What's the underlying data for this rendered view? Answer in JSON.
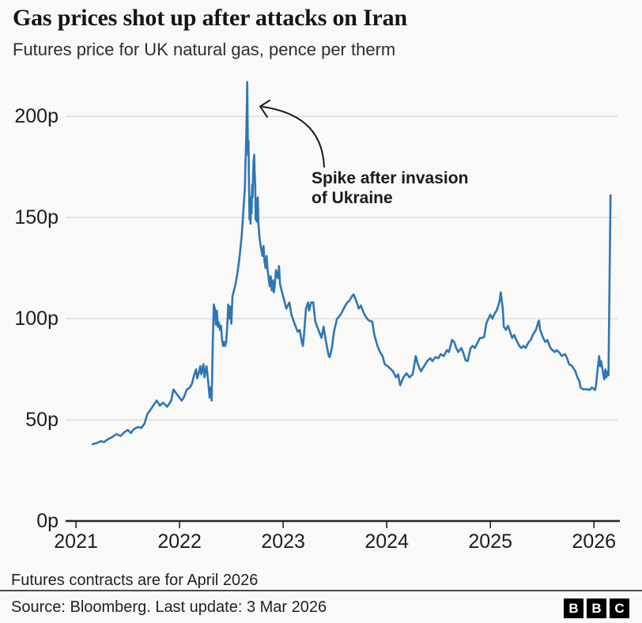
{
  "header": {
    "title": "Gas prices shot up after attacks on Iran",
    "subtitle": "Futures price for UK natural gas, pence per therm"
  },
  "annotation": {
    "lines": [
      "Spike after invasion",
      "of Ukraine"
    ],
    "points_to": {
      "x": 2022.65,
      "y": 217
    }
  },
  "footer": {
    "note": "Futures contracts are for April 2026",
    "source": "Source: Bloomberg. Last update: 3 Mar 2026",
    "logo": [
      "B",
      "B",
      "C"
    ]
  },
  "colors": {
    "line": "#2e76b4",
    "background": "#f9f9f8",
    "grid": "#d9d9d8",
    "axis": "#262626",
    "text": "#1d1d1d",
    "annotation_arrow": "#1a1a1a"
  },
  "chart_data": {
    "type": "line",
    "title": "Gas prices shot up after attacks on Iran",
    "subtitle": "Futures price for UK natural gas, pence per therm",
    "xlabel": "",
    "ylabel": "pence per therm",
    "x_unit": "decimal_year",
    "xlim": [
      2020.9,
      2026.25
    ],
    "ylim": [
      0,
      220
    ],
    "grid": "horizontal",
    "legend": "none",
    "xticks": [
      2021,
      2022,
      2023,
      2024,
      2025,
      2026
    ],
    "yticks": [
      {
        "value": 0,
        "label": "0p"
      },
      {
        "value": 50,
        "label": "50p"
      },
      {
        "value": 100,
        "label": "100p"
      },
      {
        "value": 150,
        "label": "150p"
      },
      {
        "value": 200,
        "label": "200p"
      }
    ],
    "annotations": [
      {
        "text": "Spike after invasion of Ukraine",
        "target": {
          "x": 2022.65,
          "y": 217
        }
      }
    ],
    "series": [
      {
        "name": "UK natural gas futures price (April 2026 contract), pence per therm",
        "points": [
          [
            2021.16,
            38
          ],
          [
            2021.2,
            38.5
          ],
          [
            2021.24,
            39.5
          ],
          [
            2021.27,
            39
          ],
          [
            2021.31,
            40.5
          ],
          [
            2021.35,
            41.5
          ],
          [
            2021.39,
            43
          ],
          [
            2021.43,
            42
          ],
          [
            2021.47,
            44
          ],
          [
            2021.5,
            45
          ],
          [
            2021.53,
            43.5
          ],
          [
            2021.56,
            45.5
          ],
          [
            2021.6,
            46.5
          ],
          [
            2021.63,
            46
          ],
          [
            2021.66,
            48
          ],
          [
            2021.69,
            53
          ],
          [
            2021.72,
            55
          ],
          [
            2021.75,
            57.5
          ],
          [
            2021.78,
            59.5
          ],
          [
            2021.81,
            57
          ],
          [
            2021.84,
            58.5
          ],
          [
            2021.88,
            56.5
          ],
          [
            2021.92,
            59.5
          ],
          [
            2021.94,
            65
          ],
          [
            2021.97,
            63
          ],
          [
            2022,
            61
          ],
          [
            2022.02,
            59.5
          ],
          [
            2022.04,
            61
          ],
          [
            2022.07,
            65
          ],
          [
            2022.1,
            66
          ],
          [
            2022.12,
            68
          ],
          [
            2022.14,
            72
          ],
          [
            2022.16,
            75
          ],
          [
            2022.17,
            70.5
          ],
          [
            2022.19,
            74
          ],
          [
            2022.2,
            76.5
          ],
          [
            2022.21,
            72.5
          ],
          [
            2022.23,
            77.5
          ],
          [
            2022.24,
            71
          ],
          [
            2022.26,
            76.5
          ],
          [
            2022.27,
            72
          ],
          [
            2022.28,
            67
          ],
          [
            2022.29,
            61
          ],
          [
            2022.3,
            66
          ],
          [
            2022.31,
            59.5
          ],
          [
            2022.32,
            88
          ],
          [
            2022.33,
            107
          ],
          [
            2022.34,
            105
          ],
          [
            2022.35,
            97
          ],
          [
            2022.36,
            104
          ],
          [
            2022.37,
            96
          ],
          [
            2022.38,
            98
          ],
          [
            2022.39,
            94.5
          ],
          [
            2022.4,
            96.5
          ],
          [
            2022.41,
            89.5
          ],
          [
            2022.42,
            86.5
          ],
          [
            2022.43,
            88.5
          ],
          [
            2022.44,
            86.5
          ],
          [
            2022.45,
            88.5
          ],
          [
            2022.46,
            96
          ],
          [
            2022.47,
            107
          ],
          [
            2022.48,
            100
          ],
          [
            2022.49,
            106
          ],
          [
            2022.5,
            97.5
          ],
          [
            2022.51,
            111
          ],
          [
            2022.52,
            113
          ],
          [
            2022.54,
            117
          ],
          [
            2022.56,
            123
          ],
          [
            2022.58,
            131
          ],
          [
            2022.6,
            141
          ],
          [
            2022.61,
            149
          ],
          [
            2022.62,
            157
          ],
          [
            2022.63,
            164
          ],
          [
            2022.635,
            175
          ],
          [
            2022.64,
            183
          ],
          [
            2022.645,
            192
          ],
          [
            2022.65,
            207
          ],
          [
            2022.653,
            217
          ],
          [
            2022.657,
            196
          ],
          [
            2022.66,
            181
          ],
          [
            2022.665,
            188
          ],
          [
            2022.67,
            168
          ],
          [
            2022.675,
            149
          ],
          [
            2022.68,
            157
          ],
          [
            2022.685,
            147
          ],
          [
            2022.69,
            160
          ],
          [
            2022.695,
            152
          ],
          [
            2022.7,
            166
          ],
          [
            2022.705,
            160
          ],
          [
            2022.71,
            172
          ],
          [
            2022.715,
            178
          ],
          [
            2022.72,
            181
          ],
          [
            2022.725,
            172
          ],
          [
            2022.73,
            166
          ],
          [
            2022.735,
            149
          ],
          [
            2022.74,
            159
          ],
          [
            2022.745,
            148
          ],
          [
            2022.75,
            158
          ],
          [
            2022.755,
            160
          ],
          [
            2022.76,
            148
          ],
          [
            2022.77,
            141
          ],
          [
            2022.78,
            137
          ],
          [
            2022.79,
            134
          ],
          [
            2022.8,
            131
          ],
          [
            2022.81,
            136
          ],
          [
            2022.82,
            128
          ],
          [
            2022.83,
            125
          ],
          [
            2022.84,
            131
          ],
          [
            2022.85,
            124
          ],
          [
            2022.86,
            120
          ],
          [
            2022.87,
            116
          ],
          [
            2022.88,
            121
          ],
          [
            2022.89,
            114
          ],
          [
            2022.9,
            119
          ],
          [
            2022.91,
            113
          ],
          [
            2022.92,
            117
          ],
          [
            2022.93,
            124
          ],
          [
            2022.95,
            120
          ],
          [
            2022.96,
            126
          ],
          [
            2022.97,
            117
          ],
          [
            2022.99,
            113
          ],
          [
            2023.01,
            109
          ],
          [
            2023.03,
            105
          ],
          [
            2023.06,
            108
          ],
          [
            2023.08,
            102
          ],
          [
            2023.11,
            97.5
          ],
          [
            2023.14,
            93.5
          ],
          [
            2023.16,
            94.5
          ],
          [
            2023.18,
            88.5
          ],
          [
            2023.19,
            86.5
          ],
          [
            2023.2,
            91.5
          ],
          [
            2023.22,
            105
          ],
          [
            2023.24,
            108
          ],
          [
            2023.25,
            104
          ],
          [
            2023.27,
            108
          ],
          [
            2023.29,
            108
          ],
          [
            2023.31,
            98.5
          ],
          [
            2023.34,
            94.5
          ],
          [
            2023.37,
            90.5
          ],
          [
            2023.39,
            96
          ],
          [
            2023.41,
            89.5
          ],
          [
            2023.44,
            81.5
          ],
          [
            2023.45,
            81
          ],
          [
            2023.47,
            85.5
          ],
          [
            2023.49,
            93.5
          ],
          [
            2023.52,
            100
          ],
          [
            2023.54,
            101
          ],
          [
            2023.56,
            102.5
          ],
          [
            2023.6,
            106.5
          ],
          [
            2023.62,
            108
          ],
          [
            2023.64,
            109
          ],
          [
            2023.67,
            111.5
          ],
          [
            2023.68,
            112
          ],
          [
            2023.71,
            108
          ],
          [
            2023.73,
            105
          ],
          [
            2023.75,
            106.5
          ],
          [
            2023.78,
            102.5
          ],
          [
            2023.81,
            100
          ],
          [
            2023.83,
            99
          ],
          [
            2023.86,
            98.5
          ],
          [
            2023.88,
            92
          ],
          [
            2023.91,
            86.5
          ],
          [
            2023.94,
            83
          ],
          [
            2023.96,
            81.5
          ],
          [
            2023.98,
            77.5
          ],
          [
            2024.01,
            76.5
          ],
          [
            2024.04,
            75
          ],
          [
            2024.06,
            74
          ],
          [
            2024.09,
            71
          ],
          [
            2024.11,
            72.5
          ],
          [
            2024.13,
            67
          ],
          [
            2024.16,
            71
          ],
          [
            2024.19,
            73
          ],
          [
            2024.22,
            71
          ],
          [
            2024.25,
            72.5
          ],
          [
            2024.28,
            81.5
          ],
          [
            2024.3,
            77.5
          ],
          [
            2024.33,
            74
          ],
          [
            2024.36,
            76.5
          ],
          [
            2024.39,
            79
          ],
          [
            2024.42,
            80.5
          ],
          [
            2024.44,
            79
          ],
          [
            2024.47,
            81
          ],
          [
            2024.5,
            80.5
          ],
          [
            2024.52,
            82.5
          ],
          [
            2024.55,
            81.5
          ],
          [
            2024.58,
            84.5
          ],
          [
            2024.6,
            83.5
          ],
          [
            2024.63,
            89.5
          ],
          [
            2024.65,
            88.5
          ],
          [
            2024.67,
            85.5
          ],
          [
            2024.69,
            83.5
          ],
          [
            2024.72,
            85.5
          ],
          [
            2024.74,
            83
          ],
          [
            2024.76,
            79.5
          ],
          [
            2024.78,
            79
          ],
          [
            2024.81,
            85.5
          ],
          [
            2024.83,
            86.5
          ],
          [
            2024.85,
            85.5
          ],
          [
            2024.88,
            88.5
          ],
          [
            2024.9,
            90.5
          ],
          [
            2024.92,
            90.5
          ],
          [
            2024.94,
            91
          ],
          [
            2024.96,
            97.5
          ],
          [
            2024.98,
            100
          ],
          [
            2025,
            102
          ],
          [
            2025.02,
            100
          ],
          [
            2025.04,
            102.5
          ],
          [
            2025.06,
            104
          ],
          [
            2025.08,
            107
          ],
          [
            2025.09,
            109
          ],
          [
            2025.1,
            113
          ],
          [
            2025.12,
            105
          ],
          [
            2025.13,
            96
          ],
          [
            2025.15,
            94.5
          ],
          [
            2025.17,
            96.5
          ],
          [
            2025.19,
            93.5
          ],
          [
            2025.21,
            90.5
          ],
          [
            2025.23,
            92
          ],
          [
            2025.25,
            89.5
          ],
          [
            2025.28,
            86.5
          ],
          [
            2025.3,
            85.5
          ],
          [
            2025.32,
            86.5
          ],
          [
            2025.34,
            85.5
          ],
          [
            2025.37,
            88.5
          ],
          [
            2025.39,
            89.5
          ],
          [
            2025.41,
            92
          ],
          [
            2025.44,
            94.5
          ],
          [
            2025.46,
            98
          ],
          [
            2025.47,
            99
          ],
          [
            2025.48,
            94.5
          ],
          [
            2025.51,
            90.5
          ],
          [
            2025.53,
            88.5
          ],
          [
            2025.55,
            89.5
          ],
          [
            2025.58,
            85.5
          ],
          [
            2025.6,
            84.5
          ],
          [
            2025.62,
            83.5
          ],
          [
            2025.64,
            84.5
          ],
          [
            2025.67,
            83
          ],
          [
            2025.69,
            81.5
          ],
          [
            2025.72,
            82.5
          ],
          [
            2025.74,
            80.5
          ],
          [
            2025.76,
            77.5
          ],
          [
            2025.79,
            76.5
          ],
          [
            2025.82,
            74
          ],
          [
            2025.84,
            71
          ],
          [
            2025.86,
            69
          ],
          [
            2025.87,
            66
          ],
          [
            2025.9,
            65
          ],
          [
            2025.92,
            65.2
          ],
          [
            2025.96,
            64.8
          ],
          [
            2025.98,
            66
          ],
          [
            2026.01,
            64.8
          ],
          [
            2026.02,
            67
          ],
          [
            2026.03,
            72.5
          ],
          [
            2026.05,
            81.5
          ],
          [
            2026.06,
            76.5
          ],
          [
            2026.07,
            79
          ],
          [
            2026.09,
            72.5
          ],
          [
            2026.1,
            70
          ],
          [
            2026.11,
            75
          ],
          [
            2026.12,
            71
          ],
          [
            2026.13,
            73.8
          ],
          [
            2026.14,
            72
          ],
          [
            2026.16,
            161
          ]
        ]
      }
    ]
  }
}
